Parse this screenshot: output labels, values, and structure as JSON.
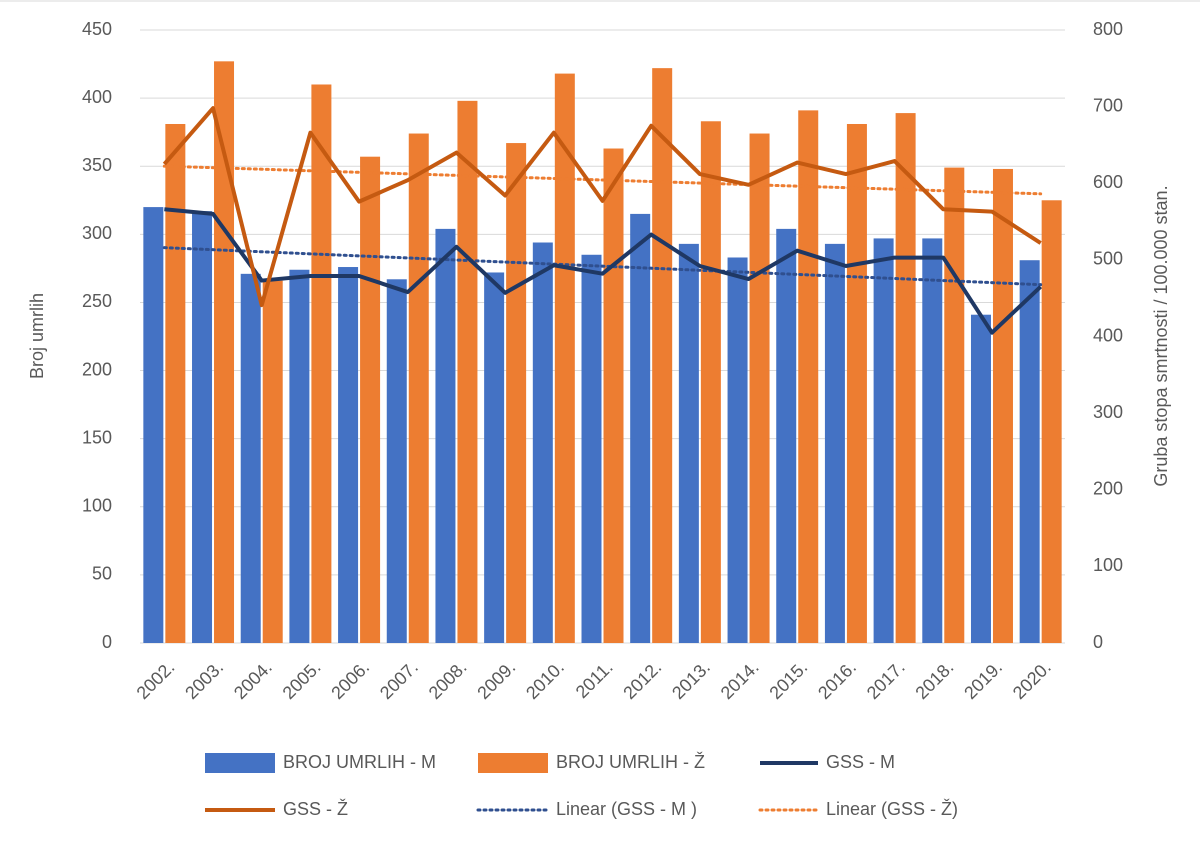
{
  "chart_data": {
    "type": "bar-line",
    "y_label": "Broj umrlih",
    "y2_label": "Gruba stopa smrtnosti / 100.000 stan.",
    "categories": [
      "2002.",
      "2003.",
      "2004.",
      "2005.",
      "2006.",
      "2007.",
      "2008.",
      "2009.",
      "2010.",
      "2011.",
      "2012.",
      "2013.",
      "2014.",
      "2015.",
      "2016.",
      "2017.",
      "2018.",
      "2019.",
      "2020."
    ],
    "series": [
      {
        "name": "BROJ UMRLIH - M",
        "color": "#4472c4",
        "kind": "bar",
        "values": [
          320,
          317,
          271,
          274,
          276,
          267,
          304,
          272,
          294,
          285,
          315,
          293,
          283,
          304,
          293,
          297,
          297,
          241,
          281
        ]
      },
      {
        "name": "BROJ UMRLIH - Ž",
        "color": "#ed7d31",
        "kind": "bar",
        "values": [
          381,
          427,
          266,
          410,
          357,
          374,
          398,
          367,
          418,
          363,
          422,
          383,
          374,
          391,
          381,
          389,
          349,
          348,
          325
        ]
      },
      {
        "name": "GSS - M",
        "color": "#1f3864",
        "kind": "line",
        "axis": "y2",
        "values": [
          566,
          560,
          473,
          479,
          479,
          458,
          517,
          457,
          493,
          482,
          533,
          492,
          475,
          512,
          492,
          503,
          503,
          405,
          465
        ]
      },
      {
        "name": "GSS - Ž",
        "color": "#c55a11",
        "kind": "line",
        "axis": "y2",
        "values": [
          625,
          698,
          441,
          666,
          576,
          604,
          640,
          584,
          666,
          577,
          675,
          612,
          598,
          627,
          612,
          629,
          566,
          563,
          522
        ]
      }
    ],
    "trendlines": [
      {
        "name": "Linear (GSS - M )",
        "color": "#2f4f8f",
        "series": 2
      },
      {
        "name": "Linear (GSS - Ž)",
        "color": "#ed7d31",
        "series": 3
      }
    ],
    "ylim": [
      0,
      450
    ],
    "yticks": [
      0,
      50,
      100,
      150,
      200,
      250,
      300,
      350,
      400,
      450
    ],
    "y2lim": [
      0,
      800
    ],
    "y2ticks": [
      0,
      100,
      200,
      300,
      400,
      500,
      600,
      700,
      800
    ],
    "grid": true
  }
}
